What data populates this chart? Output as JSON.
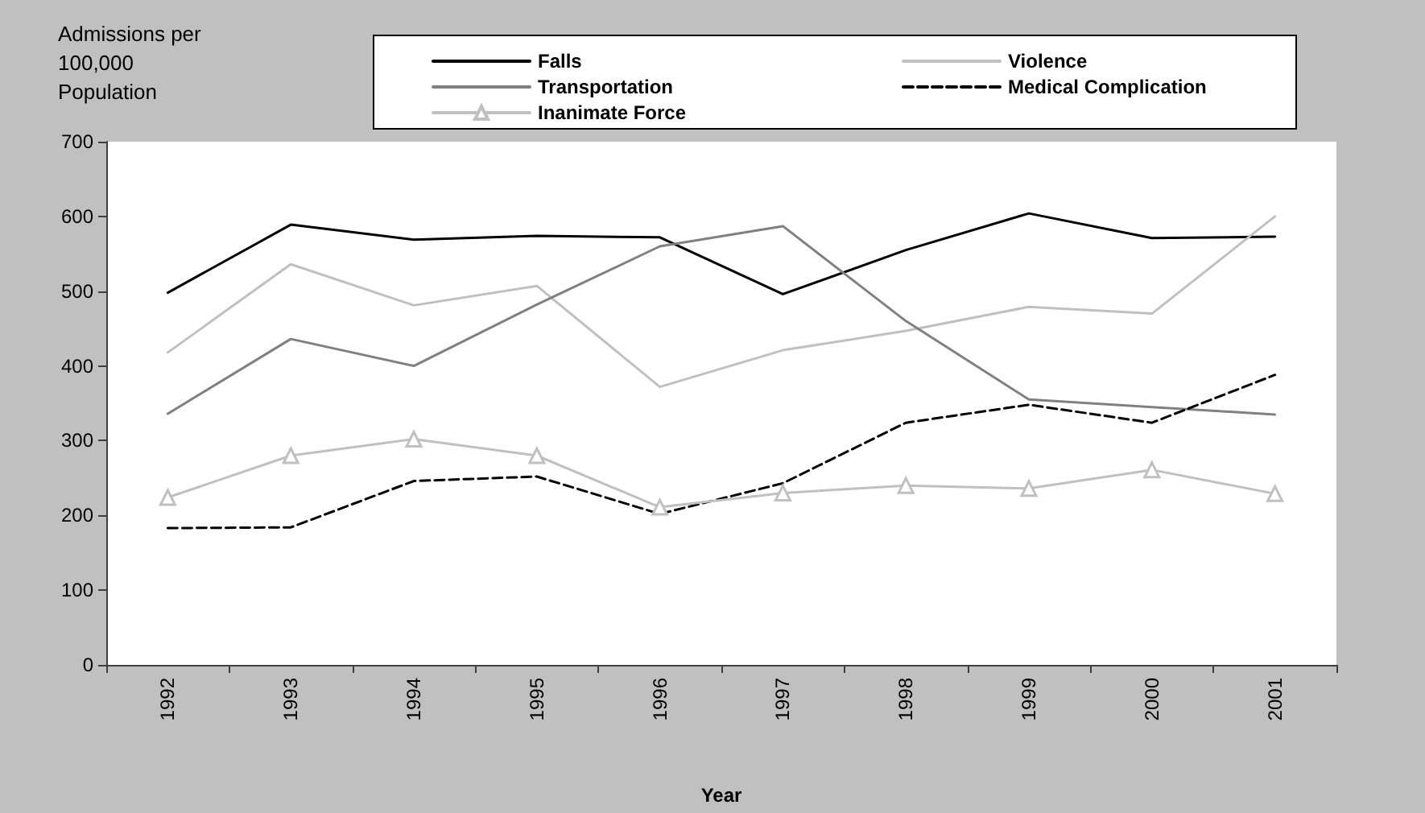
{
  "chart_data": {
    "type": "line",
    "xlabel": "Year",
    "ylabel": "Admissions per 100,000 Population",
    "categories": [
      "1992",
      "1993",
      "1994",
      "1995",
      "1996",
      "1997",
      "1998",
      "1999",
      "2000",
      "2001"
    ],
    "series": [
      {
        "name": "Falls",
        "color": "#000000",
        "values": [
          498,
          589,
          569,
          574,
          572,
          496,
          555,
          604,
          571,
          573
        ]
      },
      {
        "name": "Violence",
        "color": "#c0c0c0",
        "values": [
          418,
          536,
          481,
          507,
          372,
          421,
          447,
          479,
          470,
          600
        ]
      },
      {
        "name": "Transportation",
        "color": "#808080",
        "values": [
          336,
          436,
          400,
          482,
          560,
          587,
          460,
          355,
          345,
          335
        ]
      },
      {
        "name": "Medical Complication",
        "color": "#000000",
        "line_style": "dashed",
        "values": [
          183,
          184,
          246,
          252,
          202,
          243,
          324,
          348,
          324,
          388
        ]
      },
      {
        "name": "Inanimate Force",
        "color": "#c0c0c0",
        "marker": "triangle",
        "values": [
          224,
          280,
          302,
          280,
          211,
          230,
          240,
          236,
          261,
          229
        ]
      }
    ],
    "ylim": [
      0,
      700
    ],
    "yticks": [
      0,
      100,
      200,
      300,
      400,
      500,
      600,
      700
    ],
    "grid": false,
    "legend": "top",
    "marker": "none",
    "line_style": "solid"
  }
}
